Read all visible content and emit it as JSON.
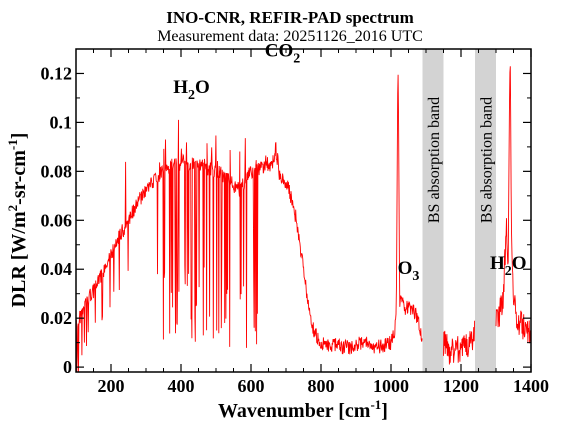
{
  "chart_data": {
    "type": "line",
    "title": "INO-CNR, REFIR-PAD spectrum",
    "subtitle": "Measurement data: 20251126_2016 UTC",
    "xlabel": {
      "main": "Wavenumber [cm",
      "sup": "-1",
      "close": "]"
    },
    "ylabel": {
      "part1": "DLR [W/m",
      "sup1": "2",
      "part2": "-sr-cm",
      "sup2": "-1",
      "close": "]"
    },
    "xlim": [
      100,
      1400
    ],
    "ylim": [
      -0.002,
      0.13
    ],
    "xticks": [
      200,
      400,
      600,
      800,
      1000,
      1200,
      1400
    ],
    "xtick_labels": [
      "200",
      "400",
      "600",
      "800",
      "1000",
      "1200",
      "1400"
    ],
    "yticks": [
      0,
      0.02,
      0.04,
      0.06,
      0.08,
      0.1,
      0.12
    ],
    "ytick_labels": [
      "0",
      "0.02",
      "0.04",
      "0.06",
      "0.08",
      "0.1",
      "0.12"
    ],
    "grid": false,
    "line_color": "#ff0000",
    "band_color": "#d3d3d3",
    "absorption_bands": [
      {
        "x_range": [
          1090,
          1150
        ],
        "label": "BS absorption band"
      },
      {
        "x_range": [
          1240,
          1300
        ],
        "label": "BS absorption band"
      }
    ],
    "annotations": [
      {
        "id": "h2o-left",
        "main": "H",
        "sub": "2",
        "tail": "O",
        "x": 430,
        "y": 0.112
      },
      {
        "id": "co2",
        "main": "CO",
        "sub": "2",
        "tail": "",
        "x": 690,
        "y": 0.127
      },
      {
        "id": "o3",
        "main": "O",
        "sub": "3",
        "tail": "",
        "x": 1050,
        "y": 0.038
      },
      {
        "id": "h2o-right",
        "main": "H",
        "sub": "2",
        "tail": "O",
        "x": 1335,
        "y": 0.04
      }
    ],
    "series": [
      {
        "x": [
          100,
          110,
          120,
          130,
          140,
          150,
          160,
          170,
          180,
          190,
          200,
          210,
          220,
          230,
          240,
          250,
          260,
          270,
          280,
          290,
          300,
          310,
          320,
          330,
          340,
          350,
          360,
          370,
          380,
          390,
          400,
          410,
          420,
          430,
          440,
          450,
          460,
          470,
          480,
          490,
          500,
          510,
          520,
          530,
          540,
          550,
          560,
          570,
          580,
          590,
          600,
          610,
          620,
          630,
          640,
          650,
          660,
          670,
          680,
          690,
          700,
          710,
          720,
          730,
          740,
          750,
          760,
          770,
          780,
          790,
          800,
          820,
          840,
          860,
          880,
          900,
          920,
          940,
          960,
          980,
          1000,
          1010,
          1015,
          1020,
          1025,
          1030,
          1035,
          1040,
          1050,
          1060,
          1070,
          1080,
          1090,
          1150,
          1160,
          1170,
          1180,
          1190,
          1200,
          1210,
          1220,
          1230,
          1240,
          1300,
          1310,
          1320,
          1330,
          1335,
          1340,
          1345,
          1350,
          1360,
          1370,
          1380,
          1390,
          1400
        ],
        "y": [
          0.018,
          0.02,
          0.023,
          0.026,
          0.029,
          0.031,
          0.034,
          0.037,
          0.04,
          0.043,
          0.046,
          0.049,
          0.052,
          0.055,
          0.057,
          0.06,
          0.063,
          0.065,
          0.068,
          0.07,
          0.072,
          0.074,
          0.075,
          0.077,
          0.079,
          0.08,
          0.081,
          0.082,
          0.083,
          0.083,
          0.082,
          0.083,
          0.082,
          0.083,
          0.082,
          0.082,
          0.083,
          0.082,
          0.081,
          0.081,
          0.08,
          0.08,
          0.078,
          0.077,
          0.076,
          0.074,
          0.073,
          0.072,
          0.074,
          0.078,
          0.08,
          0.08,
          0.081,
          0.082,
          0.083,
          0.083,
          0.082,
          0.09,
          0.08,
          0.078,
          0.075,
          0.072,
          0.066,
          0.06,
          0.05,
          0.04,
          0.03,
          0.02,
          0.015,
          0.012,
          0.01,
          0.009,
          0.009,
          0.008,
          0.008,
          0.009,
          0.01,
          0.009,
          0.008,
          0.009,
          0.01,
          0.015,
          0.02,
          0.13,
          0.025,
          0.03,
          0.025,
          0.024,
          0.025,
          0.024,
          0.022,
          0.018,
          0.01,
          0.01,
          0.008,
          0.005,
          0.007,
          0.008,
          0.006,
          0.008,
          0.009,
          0.012,
          0.015,
          0.02,
          0.022,
          0.025,
          0.06,
          0.04,
          0.13,
          0.05,
          0.03,
          0.02,
          0.018,
          0.016,
          0.015,
          0.014
        ]
      }
    ]
  }
}
